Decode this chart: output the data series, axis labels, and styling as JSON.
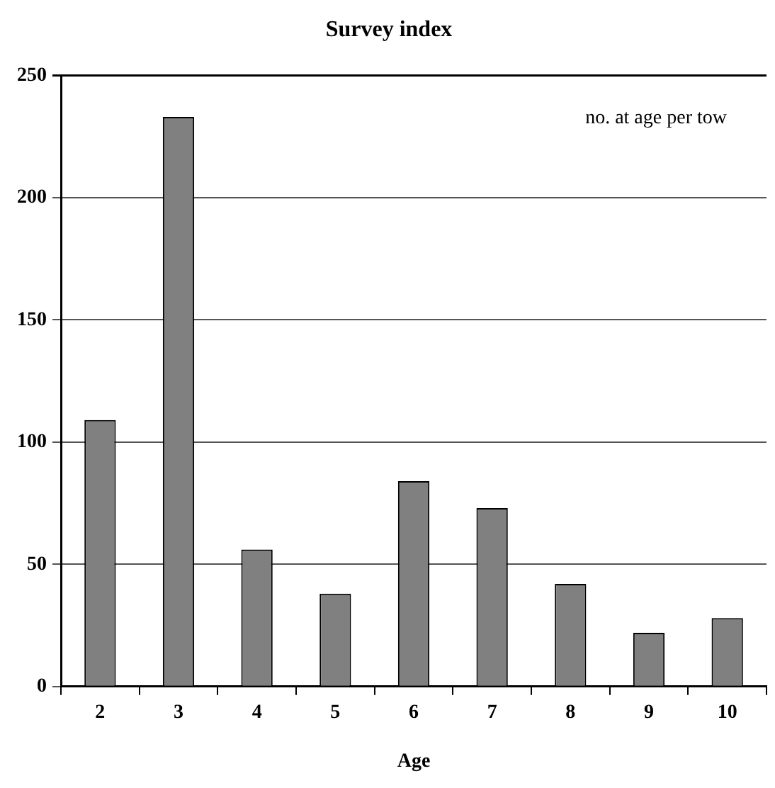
{
  "chart_data": {
    "type": "bar",
    "title": "Survey index",
    "xlabel": "Age",
    "categories": [
      "2",
      "3",
      "4",
      "5",
      "6",
      "7",
      "8",
      "9",
      "10"
    ],
    "values": [
      109,
      233,
      56,
      38,
      84,
      73,
      42,
      22,
      28
    ],
    "color": "#808080",
    "ylim": [
      0,
      250
    ],
    "yticks": [
      0,
      50,
      100,
      150,
      200,
      250
    ],
    "grid": "y",
    "legend": false,
    "annotations": [
      "no. at age per tow"
    ]
  }
}
